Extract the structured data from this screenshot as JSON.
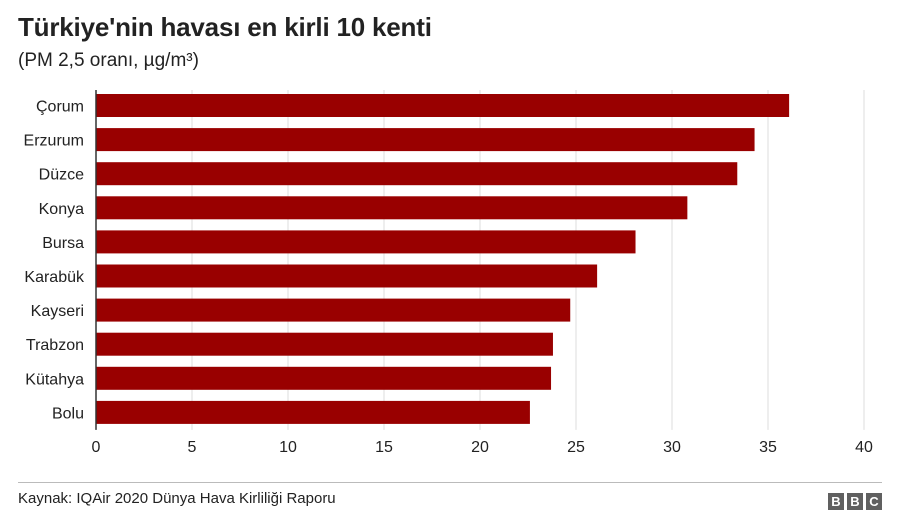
{
  "header": {
    "title": "Türkiye'nin havası en kirli 10 kenti",
    "subtitle": "(PM 2,5 oranı, µg/m³)"
  },
  "footer": {
    "source": "Kaynak: IQAir 2020 Dünya Hava Kirliliği Raporu",
    "logo_letters": [
      "B",
      "B",
      "C"
    ]
  },
  "colors": {
    "bar": "#990000",
    "grid": "#dddddd",
    "axis": "#333333"
  },
  "chart_data": {
    "type": "bar",
    "orientation": "horizontal",
    "categories": [
      "Çorum",
      "Erzurum",
      "Düzce",
      "Konya",
      "Bursa",
      "Karabük",
      "Kayseri",
      "Trabzon",
      "Kütahya",
      "Bolu"
    ],
    "values": [
      36.1,
      34.3,
      33.4,
      30.8,
      28.1,
      26.1,
      24.7,
      23.8,
      23.7,
      22.6
    ],
    "xlim": [
      0,
      40
    ],
    "xticks": [
      0,
      5,
      10,
      15,
      20,
      25,
      30,
      35,
      40
    ],
    "grid": true
  }
}
